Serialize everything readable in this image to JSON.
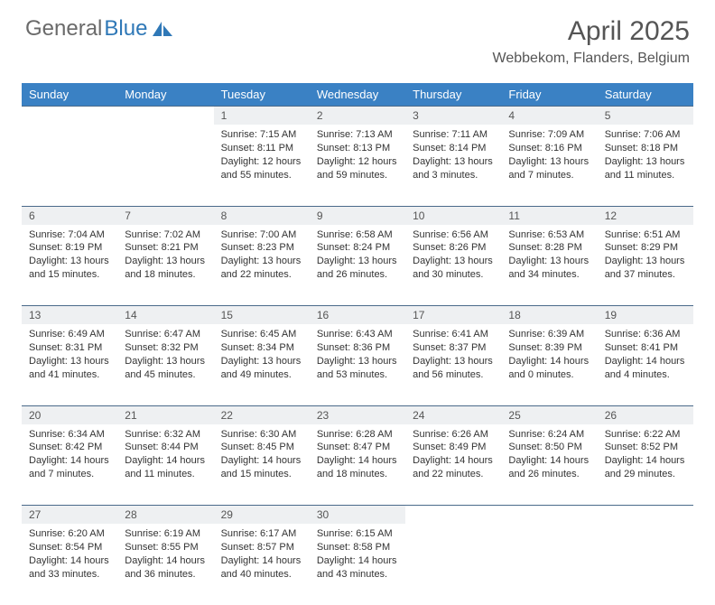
{
  "brand": {
    "general": "General",
    "blue": "Blue"
  },
  "title": "April 2025",
  "location": "Webbekom, Flanders, Belgium",
  "colors": {
    "header_bg": "#3a81c4",
    "header_text": "#ffffff",
    "daynum_bg": "#eef0f2",
    "border": "#4a6a8a",
    "body_text": "#333333",
    "logo_gray": "#6a6a6a",
    "logo_blue": "#2f78b7",
    "page_bg": "#ffffff"
  },
  "weekdays": [
    "Sunday",
    "Monday",
    "Tuesday",
    "Wednesday",
    "Thursday",
    "Friday",
    "Saturday"
  ],
  "weeks": [
    [
      null,
      null,
      {
        "n": "1",
        "sr": "7:15 AM",
        "ss": "8:11 PM",
        "dl": "12 hours and 55 minutes."
      },
      {
        "n": "2",
        "sr": "7:13 AM",
        "ss": "8:13 PM",
        "dl": "12 hours and 59 minutes."
      },
      {
        "n": "3",
        "sr": "7:11 AM",
        "ss": "8:14 PM",
        "dl": "13 hours and 3 minutes."
      },
      {
        "n": "4",
        "sr": "7:09 AM",
        "ss": "8:16 PM",
        "dl": "13 hours and 7 minutes."
      },
      {
        "n": "5",
        "sr": "7:06 AM",
        "ss": "8:18 PM",
        "dl": "13 hours and 11 minutes."
      }
    ],
    [
      {
        "n": "6",
        "sr": "7:04 AM",
        "ss": "8:19 PM",
        "dl": "13 hours and 15 minutes."
      },
      {
        "n": "7",
        "sr": "7:02 AM",
        "ss": "8:21 PM",
        "dl": "13 hours and 18 minutes."
      },
      {
        "n": "8",
        "sr": "7:00 AM",
        "ss": "8:23 PM",
        "dl": "13 hours and 22 minutes."
      },
      {
        "n": "9",
        "sr": "6:58 AM",
        "ss": "8:24 PM",
        "dl": "13 hours and 26 minutes."
      },
      {
        "n": "10",
        "sr": "6:56 AM",
        "ss": "8:26 PM",
        "dl": "13 hours and 30 minutes."
      },
      {
        "n": "11",
        "sr": "6:53 AM",
        "ss": "8:28 PM",
        "dl": "13 hours and 34 minutes."
      },
      {
        "n": "12",
        "sr": "6:51 AM",
        "ss": "8:29 PM",
        "dl": "13 hours and 37 minutes."
      }
    ],
    [
      {
        "n": "13",
        "sr": "6:49 AM",
        "ss": "8:31 PM",
        "dl": "13 hours and 41 minutes."
      },
      {
        "n": "14",
        "sr": "6:47 AM",
        "ss": "8:32 PM",
        "dl": "13 hours and 45 minutes."
      },
      {
        "n": "15",
        "sr": "6:45 AM",
        "ss": "8:34 PM",
        "dl": "13 hours and 49 minutes."
      },
      {
        "n": "16",
        "sr": "6:43 AM",
        "ss": "8:36 PM",
        "dl": "13 hours and 53 minutes."
      },
      {
        "n": "17",
        "sr": "6:41 AM",
        "ss": "8:37 PM",
        "dl": "13 hours and 56 minutes."
      },
      {
        "n": "18",
        "sr": "6:39 AM",
        "ss": "8:39 PM",
        "dl": "14 hours and 0 minutes."
      },
      {
        "n": "19",
        "sr": "6:36 AM",
        "ss": "8:41 PM",
        "dl": "14 hours and 4 minutes."
      }
    ],
    [
      {
        "n": "20",
        "sr": "6:34 AM",
        "ss": "8:42 PM",
        "dl": "14 hours and 7 minutes."
      },
      {
        "n": "21",
        "sr": "6:32 AM",
        "ss": "8:44 PM",
        "dl": "14 hours and 11 minutes."
      },
      {
        "n": "22",
        "sr": "6:30 AM",
        "ss": "8:45 PM",
        "dl": "14 hours and 15 minutes."
      },
      {
        "n": "23",
        "sr": "6:28 AM",
        "ss": "8:47 PM",
        "dl": "14 hours and 18 minutes."
      },
      {
        "n": "24",
        "sr": "6:26 AM",
        "ss": "8:49 PM",
        "dl": "14 hours and 22 minutes."
      },
      {
        "n": "25",
        "sr": "6:24 AM",
        "ss": "8:50 PM",
        "dl": "14 hours and 26 minutes."
      },
      {
        "n": "26",
        "sr": "6:22 AM",
        "ss": "8:52 PM",
        "dl": "14 hours and 29 minutes."
      }
    ],
    [
      {
        "n": "27",
        "sr": "6:20 AM",
        "ss": "8:54 PM",
        "dl": "14 hours and 33 minutes."
      },
      {
        "n": "28",
        "sr": "6:19 AM",
        "ss": "8:55 PM",
        "dl": "14 hours and 36 minutes."
      },
      {
        "n": "29",
        "sr": "6:17 AM",
        "ss": "8:57 PM",
        "dl": "14 hours and 40 minutes."
      },
      {
        "n": "30",
        "sr": "6:15 AM",
        "ss": "8:58 PM",
        "dl": "14 hours and 43 minutes."
      },
      null,
      null,
      null
    ]
  ],
  "labels": {
    "sunrise": "Sunrise: ",
    "sunset": "Sunset: ",
    "daylight": "Daylight: "
  }
}
